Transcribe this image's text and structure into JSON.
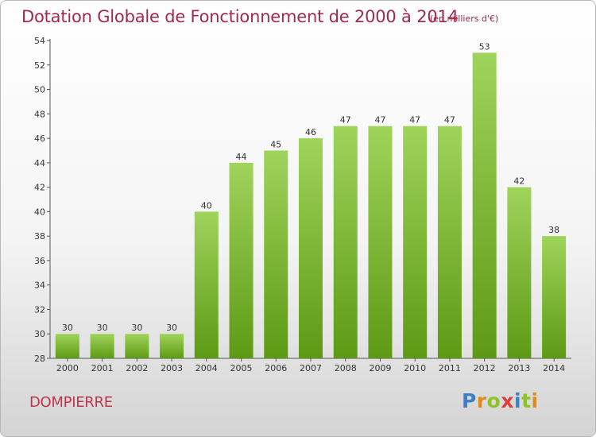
{
  "chart_data": {
    "type": "bar",
    "title": "Dotation Globale de Fonctionnement de 2000 à 2014",
    "unit_note": "(en milliers d'€)",
    "categories": [
      "2000",
      "2001",
      "2002",
      "2003",
      "2004",
      "2005",
      "2006",
      "2007",
      "2008",
      "2009",
      "2010",
      "2011",
      "2012",
      "2013",
      "2014"
    ],
    "values": [
      30,
      30,
      30,
      30,
      40,
      44,
      45,
      46,
      47,
      47,
      47,
      47,
      53,
      42,
      38
    ],
    "ylim": [
      28,
      54
    ],
    "yticks": [
      28,
      30,
      32,
      34,
      36,
      38,
      40,
      42,
      44,
      46,
      48,
      50,
      52,
      54
    ],
    "xlabel": "",
    "ylabel": "",
    "grid": false,
    "colors": {
      "bar_top": "#9fd45b",
      "bar_bottom": "#5d9a14",
      "title": "#a3284b"
    }
  },
  "footer": {
    "commune": "DOMPIERRE",
    "brand": "Proxiti",
    "brand_colors": [
      "#3a7fd0",
      "#e08a1e",
      "#8fc229",
      "#e33c3c",
      "#3a7fd0",
      "#8fc229",
      "#e08a1e"
    ]
  }
}
